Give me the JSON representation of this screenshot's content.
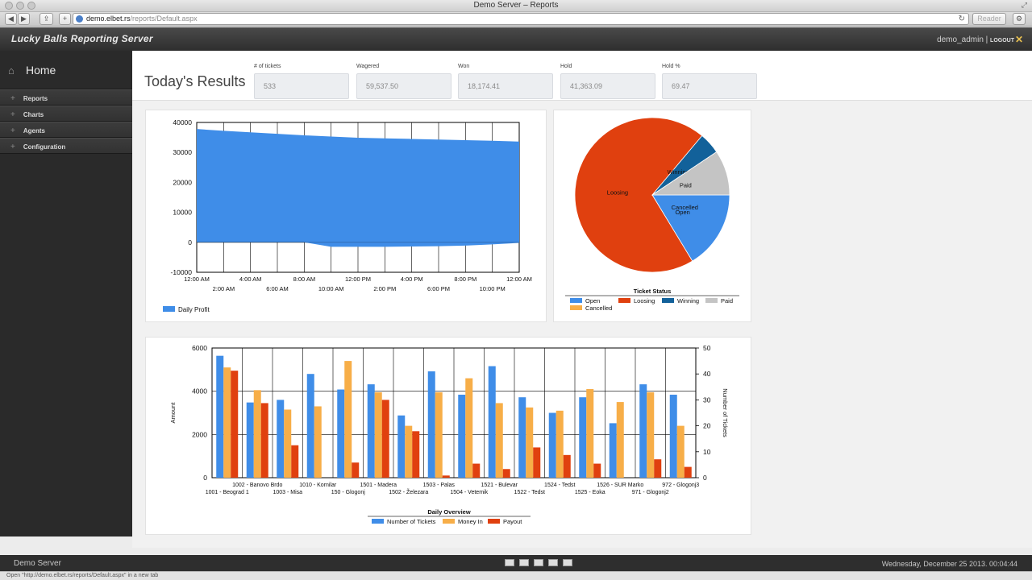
{
  "window": {
    "title": "Demo Server – Reports"
  },
  "browser": {
    "url_domain": "demo.elbet.rs",
    "url_path": "/reports/Default.aspx",
    "reader_label": "Reader",
    "status_text": "Open \"http://demo.elbet.rs/reports/Default.aspx\" in a new tab"
  },
  "header": {
    "brand": "Lucky Balls Reporting Server",
    "user": "demo_admin",
    "separator": "|",
    "logout_label": "LOGOUT"
  },
  "sidebar": {
    "home_label": "Home",
    "items": [
      {
        "label": "Reports"
      },
      {
        "label": "Charts"
      },
      {
        "label": "Agents"
      },
      {
        "label": "Configuration"
      }
    ]
  },
  "summary": {
    "title": "Today's Results",
    "stats": [
      {
        "label": "# of tickets",
        "value": "533"
      },
      {
        "label": "Wagered",
        "value": "59,537.50"
      },
      {
        "label": "Won",
        "value": "18,174.41"
      },
      {
        "label": "Hold",
        "value": "41,363.09"
      },
      {
        "label": "Hold %",
        "value": "69.47"
      }
    ]
  },
  "chart_data": [
    {
      "type": "area",
      "title": "",
      "x": [
        "12:00 AM",
        "2:00 AM",
        "4:00 AM",
        "6:00 AM",
        "8:00 AM",
        "10:00 AM",
        "12:00 PM",
        "2:00 PM",
        "4:00 PM",
        "6:00 PM",
        "8:00 PM",
        "10:00 PM",
        "12:00 AM"
      ],
      "series": [
        {
          "name": "Daily Profit",
          "color": "#3f8de8",
          "upper": [
            37800,
            37200,
            36700,
            36200,
            35700,
            35300,
            34900,
            34700,
            34500,
            34300,
            34100,
            33900,
            33600
          ],
          "lower": [
            0,
            0,
            0,
            0,
            0,
            -1500,
            -1500,
            -1500,
            -1400,
            -1300,
            -1100,
            -700,
            -200
          ]
        }
      ],
      "ylim": [
        -10000,
        40000
      ],
      "yticks": [
        -10000,
        0,
        10000,
        20000,
        30000,
        40000
      ],
      "grid": true,
      "legend": "bottom-left"
    },
    {
      "type": "pie",
      "title": "Ticket Status",
      "slices": [
        {
          "name": "Open",
          "value": 80,
          "color": "#3f8de8"
        },
        {
          "name": "Loosing",
          "value": 342,
          "color": "#e0400f"
        },
        {
          "name": "Winning",
          "value": 22,
          "color": "#12619a"
        },
        {
          "name": "Paid",
          "value": 46,
          "color": "#c4c4c4"
        },
        {
          "name": "Cancelled",
          "value": 0,
          "color": "#f7ae48"
        }
      ],
      "legend": "bottom"
    },
    {
      "type": "bar",
      "title": "Daily Overview",
      "categories": [
        "1001 - Beograd 1",
        "1002 - Banovo Brdo",
        "1003 - Misa",
        "1010 - Kornilar",
        "150 - Glogonj",
        "1501 - Madera",
        "1502 - Železara",
        "1503 - Palas",
        "1504 - Vetemik",
        "1521 - Bulevar",
        "1522 - Tedst",
        "1524 - Tedst",
        "1525 - Eoka",
        "1526 - SUR Marko",
        "971 - Glogonj2",
        "972 - Glogonj3"
      ],
      "series": [
        {
          "name": "Number of Tickets",
          "color": "#3f8de8",
          "axis": "right",
          "values": [
            47,
            29,
            30,
            40,
            34,
            36,
            24,
            41,
            32,
            43,
            31,
            25,
            31,
            21,
            36,
            32
          ]
        },
        {
          "name": "Money In",
          "color": "#f7ae48",
          "axis": "left",
          "values": [
            5100,
            4050,
            3150,
            3300,
            5400,
            3950,
            2400,
            3950,
            4600,
            3450,
            3250,
            3100,
            4100,
            3500,
            3950,
            2400
          ]
        },
        {
          "name": "Payout",
          "color": "#e0400f",
          "axis": "left",
          "values": [
            4950,
            3450,
            1500,
            0,
            700,
            3600,
            2150,
            100,
            650,
            400,
            1400,
            1050,
            650,
            0,
            850,
            500
          ]
        }
      ],
      "ylabel": "Amount",
      "y2label": "Number of Tickets",
      "ylim": [
        0,
        6000
      ],
      "y2lim": [
        0,
        50
      ],
      "yticks": [
        0,
        2000,
        4000,
        6000
      ],
      "y2ticks": [
        0,
        10,
        20,
        30,
        40,
        50
      ],
      "grid": true,
      "legend": "bottom"
    }
  ],
  "footer": {
    "left": "Demo Server",
    "right": "Wednesday, December 25 2013. 00:04:44"
  }
}
